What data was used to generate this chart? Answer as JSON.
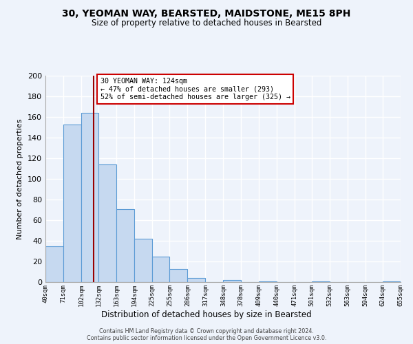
{
  "title": "30, YEOMAN WAY, BEARSTED, MAIDSTONE, ME15 8PH",
  "subtitle": "Size of property relative to detached houses in Bearsted",
  "xlabel": "Distribution of detached houses by size in Bearsted",
  "ylabel": "Number of detached properties",
  "bin_edges": [
    40,
    71,
    102,
    132,
    163,
    194,
    225,
    255,
    286,
    317,
    348,
    378,
    409,
    440,
    471,
    501,
    532,
    563,
    594,
    624,
    655
  ],
  "bar_heights": [
    35,
    153,
    164,
    114,
    71,
    42,
    25,
    13,
    4,
    0,
    2,
    0,
    1,
    0,
    0,
    1,
    0,
    0,
    0,
    1
  ],
  "bar_color": "#c6d9f0",
  "bar_edge_color": "#5b9bd5",
  "bg_color": "#eef3fb",
  "grid_color": "#ffffff",
  "vline_x": 124,
  "vline_color": "#990000",
  "annotation_line1": "30 YEOMAN WAY: 124sqm",
  "annotation_line2": "← 47% of detached houses are smaller (293)",
  "annotation_line3": "52% of semi-detached houses are larger (325) →",
  "annotation_box_color": "#ffffff",
  "annotation_box_edge": "#cc0000",
  "ylim": [
    0,
    200
  ],
  "yticks": [
    0,
    20,
    40,
    60,
    80,
    100,
    120,
    140,
    160,
    180,
    200
  ],
  "footer_line1": "Contains HM Land Registry data © Crown copyright and database right 2024.",
  "footer_line2": "Contains public sector information licensed under the Open Government Licence v3.0."
}
